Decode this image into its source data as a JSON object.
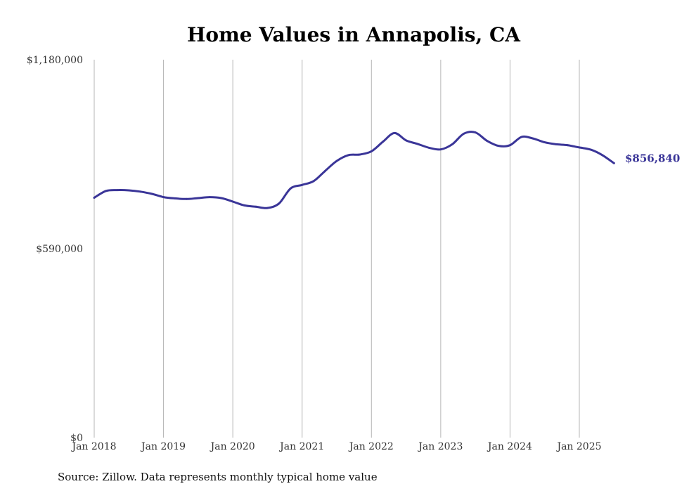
{
  "chart_data": {
    "type": "line",
    "title": "Home Values in Annapolis, CA",
    "source": "Source: Zillow. Data represents monthly typical home value",
    "ylim": [
      0,
      1180000
    ],
    "y_ticks": [
      {
        "value": 0,
        "label": "$0"
      },
      {
        "value": 590000,
        "label": "$590,000"
      },
      {
        "value": 1180000,
        "label": "$1,180,000"
      }
    ],
    "x_ticks": [
      {
        "value": "2018-01",
        "label": "Jan 2018"
      },
      {
        "value": "2019-01",
        "label": "Jan 2019"
      },
      {
        "value": "2020-01",
        "label": "Jan 2020"
      },
      {
        "value": "2021-01",
        "label": "Jan 2021"
      },
      {
        "value": "2022-01",
        "label": "Jan 2022"
      },
      {
        "value": "2023-01",
        "label": "Jan 2023"
      },
      {
        "value": "2024-01",
        "label": "Jan 2024"
      },
      {
        "value": "2025-01",
        "label": "Jan 2025"
      }
    ],
    "grid": "vertical",
    "series_color": "#3a3598",
    "end_label": "$856,840",
    "series": [
      {
        "x": [
          "2018-01",
          "2018-03",
          "2018-05",
          "2018-07",
          "2018-09",
          "2018-11",
          "2019-01",
          "2019-03",
          "2019-05",
          "2019-07",
          "2019-09",
          "2019-11",
          "2020-01",
          "2020-03",
          "2020-05",
          "2020-07",
          "2020-09",
          "2020-11",
          "2021-01",
          "2021-03",
          "2021-05",
          "2021-07",
          "2021-09",
          "2021-11",
          "2022-01",
          "2022-03",
          "2022-05",
          "2022-07",
          "2022-09",
          "2022-11",
          "2023-01",
          "2023-03",
          "2023-05",
          "2023-07",
          "2023-09",
          "2023-11",
          "2024-01",
          "2024-03",
          "2024-05",
          "2024-07",
          "2024-09",
          "2024-11",
          "2025-01",
          "2025-03",
          "2025-05",
          "2025-07"
        ],
        "values": [
          749000,
          770000,
          773000,
          772000,
          768000,
          761000,
          751000,
          747000,
          745000,
          748000,
          751000,
          748000,
          737000,
          725000,
          721000,
          717000,
          731000,
          778000,
          789000,
          801000,
          833000,
          864000,
          882000,
          884000,
          894000,
          924000,
          951000,
          928000,
          917000,
          905000,
          900000,
          916000,
          949000,
          953000,
          927000,
          911000,
          913000,
          939000,
          934000,
          922000,
          916000,
          913000,
          906000,
          899000,
          882000,
          857000
        ]
      }
    ]
  }
}
